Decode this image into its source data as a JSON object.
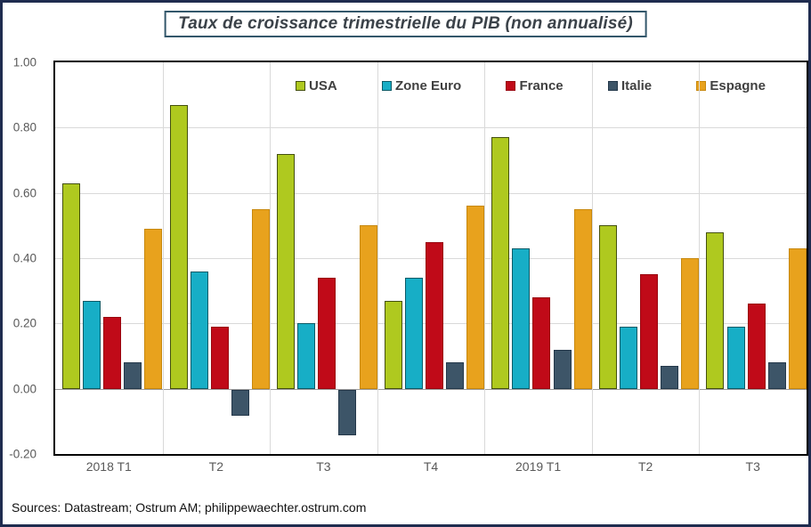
{
  "page": {
    "title": "Taux de croissance trimestrielle du PIB (non annualisé)",
    "sources": "Sources: Datastream; Ostrum AM; philippewaechter.ostrum.com"
  },
  "colors": {
    "outer_border": "#1f2c4f",
    "title_border": "#33576b",
    "plot_border": "#000000",
    "gridline": "#d9d9d9",
    "zero_line": "#9b9b9b",
    "axis_text": "#595959",
    "legend_text": "#404040"
  },
  "chart_data": {
    "type": "bar",
    "title": "Taux de croissance trimestrielle du PIB (non annualisé)",
    "xlabel": "",
    "ylabel": "",
    "ylim": [
      -0.2,
      1.0
    ],
    "grid": true,
    "legend_position": "top-inside",
    "yticks": [
      {
        "label": "1.00",
        "value": 1.0
      },
      {
        "label": "0.80",
        "value": 0.8
      },
      {
        "label": "0.60",
        "value": 0.6
      },
      {
        "label": "0.40",
        "value": 0.4
      },
      {
        "label": "0.20",
        "value": 0.2
      },
      {
        "label": "0.00",
        "value": 0.0
      },
      {
        "label": "-0.20",
        "value": -0.2
      }
    ],
    "categories": [
      "2018 T1",
      "T2",
      "T3",
      "T4",
      "2019 T1",
      "T2",
      "T3"
    ],
    "series": [
      {
        "name": "USA",
        "color": "#afc91f",
        "border": "#44500f",
        "values": [
          0.63,
          0.87,
          0.72,
          0.27,
          0.77,
          0.5,
          0.48
        ]
      },
      {
        "name": "Zone Euro",
        "color": "#17aec6",
        "border": "#0c5a66",
        "values": [
          0.27,
          0.36,
          0.2,
          0.34,
          0.43,
          0.19,
          0.19
        ]
      },
      {
        "name": "France",
        "color": "#c00a18",
        "border": "#99060f",
        "values": [
          0.22,
          0.19,
          0.34,
          0.45,
          0.28,
          0.35,
          0.26
        ]
      },
      {
        "name": "Italie",
        "color": "#3d5568",
        "border": "#24384a",
        "values": [
          0.08,
          -0.08,
          -0.14,
          0.08,
          0.12,
          0.07,
          0.08
        ]
      },
      {
        "name": "Espagne",
        "color": "#e8a21d",
        "border": "#c7880e",
        "values": [
          0.49,
          0.55,
          0.5,
          0.56,
          0.55,
          0.4,
          0.43
        ]
      }
    ]
  }
}
